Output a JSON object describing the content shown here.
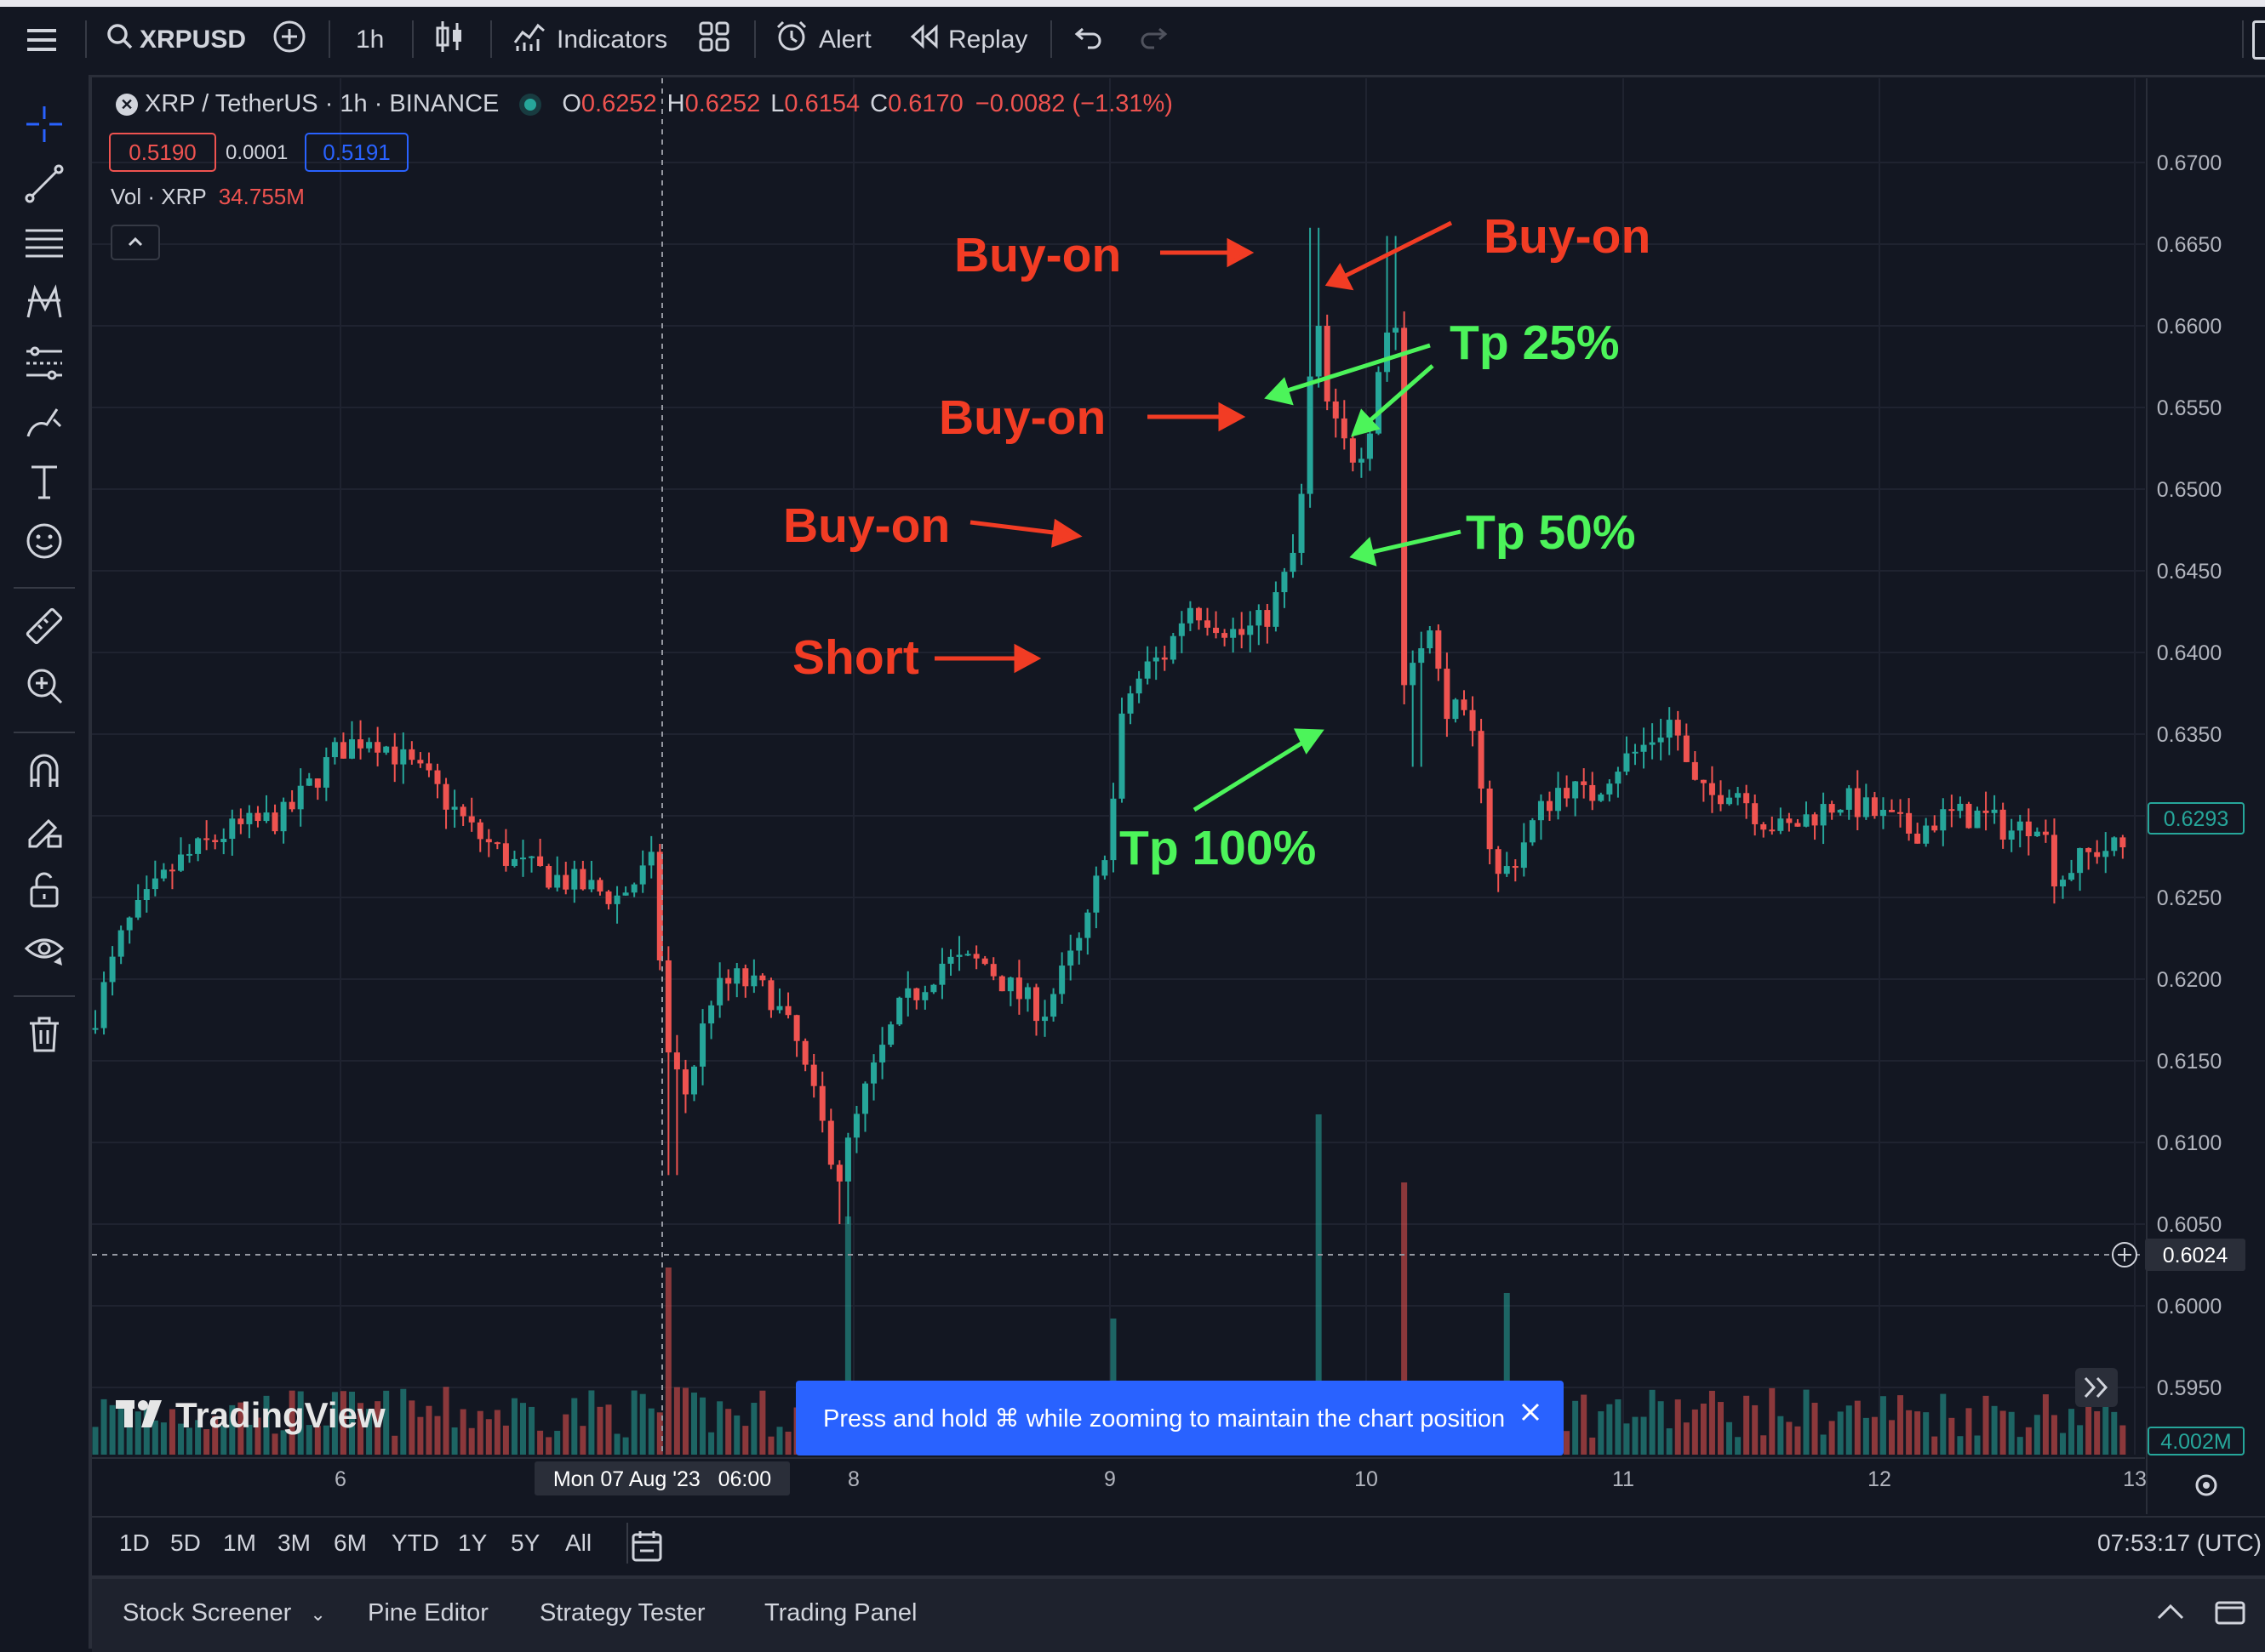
{
  "toolbar": {
    "symbol": "XRPUSD",
    "interval": "1h",
    "indicators_label": "Indicators",
    "alert_label": "Alert",
    "replay_label": "Replay"
  },
  "legend": {
    "title": "XRP / TetherUS · 1h · BINANCE",
    "o_label": "O",
    "o_value": "0.6252",
    "h_label": "H",
    "h_value": "0.6252",
    "l_label": "L",
    "l_value": "0.6154",
    "c_label": "C",
    "c_value": "0.6170",
    "change": "−0.0082 (−1.31%)",
    "sell_price": "0.5190",
    "spread": "0.0001",
    "buy_price": "0.5191",
    "vol_label": "Vol · XRP",
    "vol_value": "34.755M"
  },
  "colors": {
    "up": "#26a69a",
    "down": "#ef5350",
    "annotation_red": "#f23c24",
    "annotation_green": "#4cf45a",
    "accent_blue": "#2962ff",
    "background": "#131722"
  },
  "annotations": {
    "buy_on_1": "Buy-on",
    "buy_on_2": "Buy-on",
    "buy_on_3": "Buy-on",
    "buy_on_4": "Buy-on",
    "short": "Short",
    "tp25": "Tp 25%",
    "tp50": "Tp 50%",
    "tp100": "Tp 100%"
  },
  "chart_data": {
    "type": "candlestick",
    "price_axis": [
      "0.6700",
      "0.6650",
      "0.6600",
      "0.6550",
      "0.6500",
      "0.6450",
      "0.6400",
      "0.6350",
      "0.6300",
      "0.6250",
      "0.6200",
      "0.6150",
      "0.6100",
      "0.6050",
      "0.6000",
      "0.5950"
    ],
    "ylim": [
      0.5925,
      0.6725
    ],
    "last_price_label": "0.6293",
    "last_price": 0.6293,
    "crosshair_price_label": "0.6024",
    "crosshair_price": 0.6024,
    "volume_label": "4.002M",
    "time_axis": [
      "6",
      "8",
      "9",
      "10",
      "11",
      "12",
      "13"
    ],
    "crosshair_time_label": "Mon 07 Aug '23   06:00",
    "key_levels": {
      "first_buy_on_high": 0.666,
      "second_buy_on_high": 0.6655,
      "top_close": 0.66,
      "crash_low": 0.633,
      "tp50_level": 0.645,
      "short_entry": 0.639,
      "final_close": 0.629
    }
  },
  "watermark": "TradingView",
  "toast": {
    "text": "Press and hold ⌘ while zooming to maintain the chart position"
  },
  "range_bar": {
    "ranges": [
      "1D",
      "5D",
      "1M",
      "3M",
      "6M",
      "YTD",
      "1Y",
      "5Y",
      "All"
    ],
    "clock": "07:53:17 (UTC)"
  },
  "bottom_panel": {
    "stock_screener": "Stock Screener",
    "pine_editor": "Pine Editor",
    "strategy_tester": "Strategy Tester",
    "trading_panel": "Trading Panel"
  }
}
